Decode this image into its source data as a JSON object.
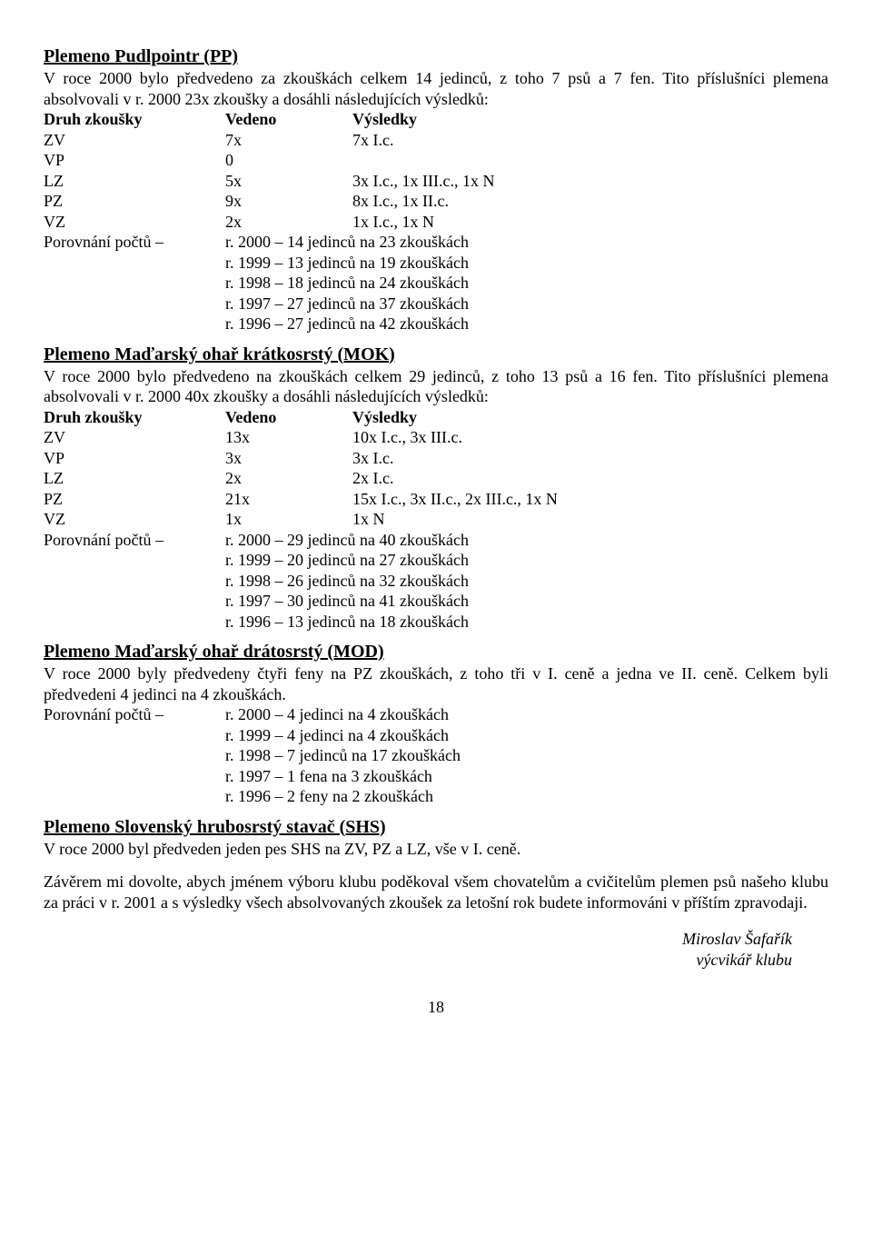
{
  "pp": {
    "title": "Plemeno Pudlpointr (PP)",
    "intro": "V roce 2000 bylo předvedeno za zkouškách celkem 14 jedinců, z toho 7 psů a 7 fen. Tito příslušníci plemena absolvovali v r. 2000 23x zkoušky a dosáhli následujících výsledků:",
    "header": {
      "c1": "Druh zkoušky",
      "c2": "Vedeno",
      "c3": "Výsledky"
    },
    "rows": [
      {
        "c1": "ZV",
        "c2": "7x",
        "c3": "7x I.c."
      },
      {
        "c1": "VP",
        "c2": "0",
        "c3": ""
      },
      {
        "c1": "LZ",
        "c2": "5x",
        "c3": "3x I.c., 1x III.c., 1x N"
      },
      {
        "c1": "PZ",
        "c2": "9x",
        "c3": "8x I.c., 1x II.c."
      },
      {
        "c1": "VZ",
        "c2": "2x",
        "c3": "1x I.c., 1x N"
      }
    ],
    "compare_label": "Porovnání počtů –",
    "compare": [
      "r. 2000 – 14 jedinců na 23 zkouškách",
      "r. 1999 – 13 jedinců na 19 zkouškách",
      "r. 1998 – 18 jedinců na 24 zkouškách",
      "r. 1997 – 27 jedinců na 37 zkouškách",
      "r. 1996 – 27 jedinců na 42 zkouškách"
    ]
  },
  "mok": {
    "title": "Plemeno Maďarský ohař krátkosrstý (MOK)",
    "intro": "V roce 2000 bylo předvedeno na zkouškách celkem 29 jedinců, z toho 13 psů a 16 fen. Tito příslušníci plemena absolvovali v r. 2000 40x zkoušky a dosáhli následujících výsledků:",
    "header": {
      "c1": "Druh zkoušky",
      "c2": "Vedeno",
      "c3": "Výsledky"
    },
    "rows": [
      {
        "c1": "ZV",
        "c2": "13x",
        "c3": "10x I.c., 3x III.c."
      },
      {
        "c1": "VP",
        "c2": "3x",
        "c3": "3x I.c."
      },
      {
        "c1": "LZ",
        "c2": "2x",
        "c3": "2x I.c."
      },
      {
        "c1": "PZ",
        "c2": "21x",
        "c3": "15x I.c., 3x II.c., 2x III.c., 1x N"
      },
      {
        "c1": "VZ",
        "c2": "1x",
        "c3": "1x N"
      }
    ],
    "compare_label": "Porovnání počtů –",
    "compare": [
      "r. 2000 – 29 jedinců na 40 zkouškách",
      "r. 1999 – 20 jedinců na 27 zkouškách",
      "r. 1998 – 26 jedinců na 32 zkouškách",
      "r. 1997 – 30 jedinců na 41 zkouškách",
      "r. 1996 – 13 jedinců na 18 zkouškách"
    ]
  },
  "mod": {
    "title": "Plemeno Maďarský ohař drátosrstý (MOD)",
    "intro": "V roce 2000 byly předvedeny čtyři feny na PZ zkouškách, z toho tři v I. ceně a jedna ve II. ceně. Celkem byli předvedeni 4 jedinci na 4 zkouškách.",
    "compare_label": "Porovnání počtů –",
    "compare": [
      "r. 2000 – 4 jedinci na 4 zkouškách",
      "r. 1999 – 4 jedinci na 4 zkouškách",
      "r. 1998 – 7 jedinců na 17 zkouškách",
      "r. 1997 – 1 fena na 3 zkouškách",
      "r. 1996 – 2 feny na 2 zkouškách"
    ]
  },
  "shs": {
    "title": "Plemeno Slovenský hrubosrstý stavač (SHS)",
    "intro": "V roce 2000 byl předveden jeden pes SHS na ZV, PZ a LZ, vše v I. ceně."
  },
  "closing": "Závěrem mi dovolte, abych jménem výboru klubu poděkoval všem chovatelům a cvičitelům plemen psů našeho klubu za práci v r. 2001 a s výsledky všech absolvovaných zkoušek za letošní rok budete informováni v příštím zpravodaji.",
  "signature1": "Miroslav Šafařík",
  "signature2": "výcvikář klubu",
  "page_number": "18"
}
